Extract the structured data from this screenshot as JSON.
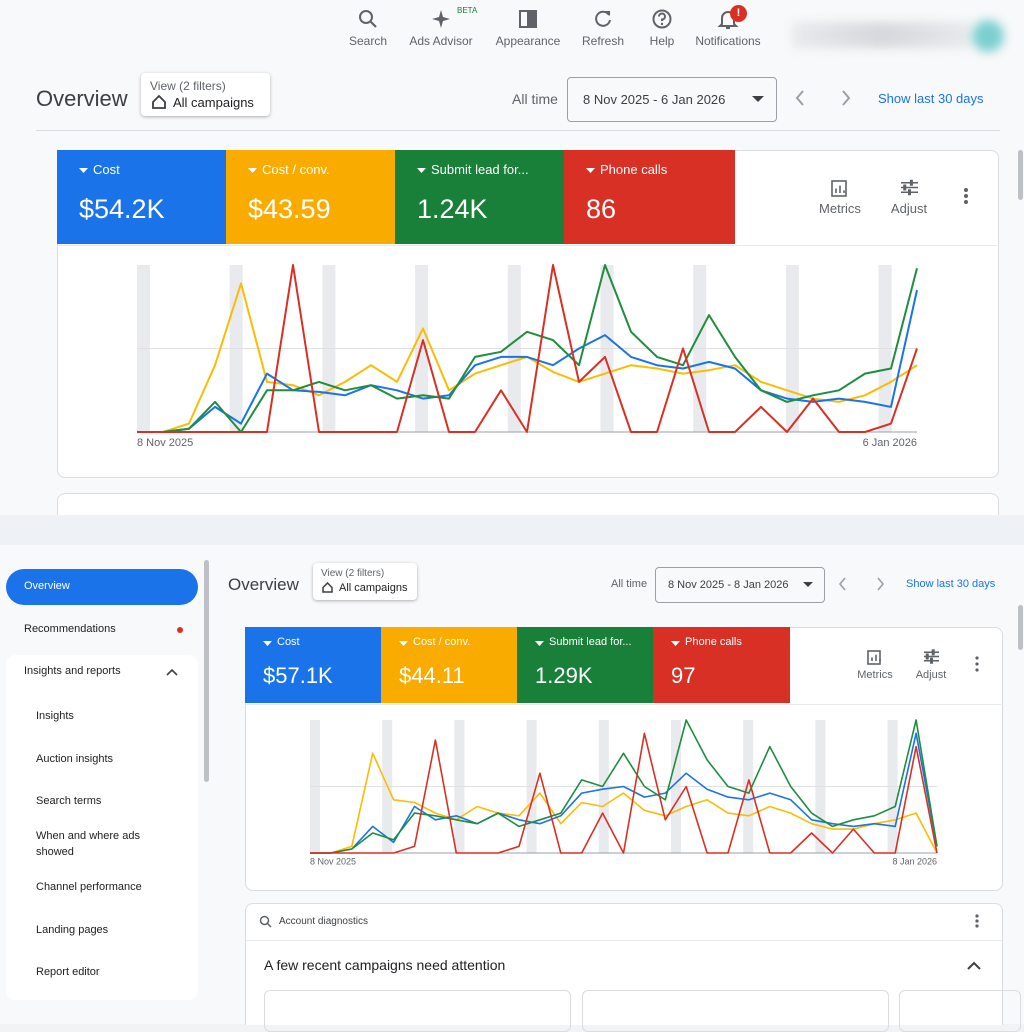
{
  "toolbar": {
    "items": [
      "Search",
      "Ads Advisor",
      "Appearance",
      "Refresh",
      "Help",
      "Notifications"
    ],
    "beta": "BETA",
    "badge": "!"
  },
  "panels": [
    {
      "title": "Overview",
      "filter": {
        "caption": "View (2 filters)",
        "value": "All campaigns"
      },
      "range_label": "All time",
      "date_range": "8 Nov 2025 - 6 Jan 2026",
      "show_last": "Show last 30 days",
      "metrics": [
        {
          "name": "Cost",
          "value": "$54.2K",
          "color": "#1a73e8"
        },
        {
          "name": "Cost / conv.",
          "value": "$43.59",
          "color": "#f9ab00"
        },
        {
          "name": "Submit lead for...",
          "value": "1.24K",
          "color": "#188038"
        },
        {
          "name": "Phone calls",
          "value": "86",
          "color": "#d93025"
        }
      ],
      "actions": [
        "Metrics",
        "Adjust"
      ],
      "chart_data": {
        "type": "line",
        "x_labels": [
          "8 Nov 2025",
          "6 Jan 2026"
        ],
        "ylim": [
          0,
          100
        ],
        "series": [
          {
            "color": "#1a73e8",
            "values": [
              0,
              0,
              2,
              15,
              5,
              35,
              25,
              24,
              22,
              28,
              25,
              20,
              22,
              40,
              45,
              45,
              40,
              50,
              58,
              45,
              40,
              38,
              42,
              38,
              25,
              20,
              18,
              20,
              18,
              15,
              85
            ]
          },
          {
            "color": "#fbbc04",
            "values": [
              0,
              0,
              5,
              40,
              89,
              30,
              28,
              22,
              30,
              40,
              30,
              62,
              25,
              35,
              40,
              45,
              36,
              30,
              35,
              40,
              38,
              35,
              37,
              40,
              30,
              25,
              20,
              18,
              22,
              30,
              40
            ]
          },
          {
            "color": "#1e8e3e",
            "values": [
              0,
              0,
              2,
              18,
              0,
              25,
              25,
              30,
              25,
              28,
              20,
              22,
              20,
              45,
              48,
              60,
              55,
              40,
              100,
              60,
              45,
              40,
              70,
              45,
              25,
              18,
              22,
              25,
              35,
              38,
              98
            ]
          },
          {
            "color": "#d93025",
            "values": [
              0,
              0,
              0,
              0,
              0,
              0,
              100,
              0,
              0,
              0,
              0,
              55,
              0,
              0,
              25,
              0,
              100,
              30,
              45,
              0,
              0,
              50,
              0,
              0,
              15,
              0,
              20,
              0,
              0,
              5,
              50
            ]
          }
        ]
      }
    },
    {
      "title": "Overview",
      "filter": {
        "caption": "View (2 filters)",
        "value": "All campaigns"
      },
      "range_label": "All time",
      "date_range": "8 Nov 2025 - 8 Jan 2026",
      "show_last": "Show last 30 days",
      "metrics": [
        {
          "name": "Cost",
          "value": "$57.1K",
          "color": "#1a73e8"
        },
        {
          "name": "Cost / conv.",
          "value": "$44.11",
          "color": "#f9ab00"
        },
        {
          "name": "Submit lead for...",
          "value": "1.29K",
          "color": "#188038"
        },
        {
          "name": "Phone calls",
          "value": "97",
          "color": "#d93025"
        }
      ],
      "actions": [
        "Metrics",
        "Adjust"
      ],
      "chart_data": {
        "type": "line",
        "x_labels": [
          "8 Nov 2025",
          "8 Jan 2026"
        ],
        "ylim": [
          0,
          100
        ],
        "series": [
          {
            "color": "#1a73e8",
            "values": [
              0,
              0,
              3,
              20,
              8,
              35,
              25,
              28,
              22,
              30,
              25,
              22,
              28,
              45,
              48,
              50,
              42,
              45,
              60,
              48,
              42,
              40,
              45,
              40,
              25,
              22,
              20,
              22,
              20,
              90,
              5
            ]
          },
          {
            "color": "#fbbc04",
            "values": [
              0,
              0,
              5,
              75,
              40,
              38,
              30,
              25,
              35,
              30,
              28,
              45,
              22,
              38,
              35,
              45,
              32,
              28,
              35,
              40,
              30,
              28,
              35,
              30,
              22,
              18,
              18,
              22,
              25,
              30,
              0
            ]
          },
          {
            "color": "#1e8e3e",
            "values": [
              0,
              0,
              3,
              15,
              10,
              30,
              28,
              25,
              22,
              30,
              20,
              25,
              30,
              55,
              50,
              75,
              50,
              40,
              100,
              70,
              50,
              45,
              80,
              50,
              30,
              20,
              25,
              28,
              35,
              100,
              5
            ]
          },
          {
            "color": "#d93025",
            "values": [
              0,
              0,
              0,
              0,
              0,
              5,
              85,
              0,
              0,
              0,
              5,
              60,
              0,
              0,
              30,
              0,
              90,
              25,
              50,
              0,
              0,
              55,
              0,
              0,
              15,
              0,
              18,
              0,
              0,
              80,
              0
            ]
          }
        ]
      },
      "diagnostics": {
        "title": "Account diagnostics",
        "message": "A few recent campaigns need attention"
      }
    }
  ],
  "sidebar": {
    "items": [
      {
        "label": "Overview",
        "active": true
      },
      {
        "label": "Recommendations",
        "alert": true
      },
      {
        "label": "Insights and reports",
        "expanded": true
      }
    ],
    "sub_items": [
      "Insights",
      "Auction insights",
      "Search terms",
      "When and where ads showed",
      "Channel performance",
      "Landing pages",
      "Report editor"
    ]
  }
}
